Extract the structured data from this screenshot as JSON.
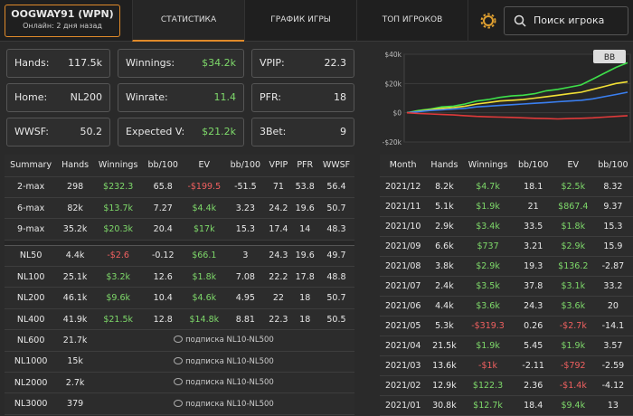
{
  "header": {
    "player": "OOGWAY91 (WPN)",
    "status": "Онлайн: 2 дня назад",
    "tabs": [
      "СТАТИСТИКА",
      "ГРАФИК ИГРЫ",
      "ТОП ИГРОКОВ"
    ],
    "search": "Поиск игрока"
  },
  "cards": [
    [
      "Hands:",
      "117.5k"
    ],
    [
      "Winnings:",
      "$34.2k"
    ],
    [
      "VPIP:",
      "22.3"
    ],
    [
      "Home:",
      "NL200"
    ],
    [
      "Winrate:",
      "11.4"
    ],
    [
      "PFR:",
      "18"
    ],
    [
      "WWSF:",
      "50.2"
    ],
    [
      "Expected V:",
      "$21.2k"
    ],
    [
      "3Bet:",
      "9"
    ]
  ],
  "chart": {
    "badge": "BB",
    "ylim": [
      -20000,
      40000
    ],
    "yticks": [
      {
        "value": 40000,
        "label": "$40k"
      },
      {
        "value": 20000,
        "label": "$20k"
      },
      {
        "value": 0,
        "label": "$0"
      },
      {
        "value": -20000,
        "label": "-$20k"
      }
    ],
    "series": [
      {
        "color": "#3ee04a",
        "values": [
          0,
          1500,
          2500,
          4000,
          4500,
          6000,
          8000,
          9000,
          10500,
          11500,
          12000,
          13000,
          15000,
          16000,
          17500,
          19000,
          23000,
          27000,
          31000,
          34200
        ]
      },
      {
        "color": "#f2e035",
        "values": [
          0,
          1000,
          2000,
          3000,
          3500,
          4500,
          6000,
          7000,
          8000,
          8500,
          9000,
          10000,
          11000,
          12000,
          13000,
          14000,
          16000,
          18000,
          20000,
          21200
        ]
      },
      {
        "color": "#3a7ff0",
        "values": [
          0,
          800,
          1500,
          2000,
          2500,
          3000,
          4000,
          4500,
          5000,
          5500,
          6000,
          6500,
          7000,
          7500,
          8000,
          8500,
          9500,
          11000,
          12500,
          14000
        ]
      },
      {
        "color": "#e03a3a",
        "values": [
          0,
          -500,
          -800,
          -1200,
          -1500,
          -2000,
          -2500,
          -2800,
          -3000,
          -3200,
          -3500,
          -3800,
          -4000,
          -4200,
          -4000,
          -3800,
          -3500,
          -3000,
          -2500,
          -2000
        ]
      }
    ]
  },
  "left_table": {
    "headers": [
      "Summary",
      "Hands",
      "Winnings",
      "bb/100",
      "EV",
      "bb/100",
      "VPIP",
      "PFR",
      "WWSF"
    ],
    "groups": [
      [
        [
          "2-max",
          "298",
          "$232.3",
          "65.8",
          "-$199.5",
          "-51.5",
          "71",
          "53.8",
          "56.4"
        ],
        [
          "6-max",
          "82k",
          "$13.7k",
          "7.27",
          "$4.4k",
          "3.23",
          "24.2",
          "19.6",
          "50.7"
        ],
        [
          "9-max",
          "35.2k",
          "$20.3k",
          "20.4",
          "$17k",
          "15.3",
          "17.4",
          "14",
          "48.3"
        ]
      ],
      [
        [
          "NL50",
          "4.4k",
          "-$2.6",
          "-0.12",
          "$66.1",
          "3",
          "24.3",
          "19.6",
          "49.7"
        ],
        [
          "NL100",
          "25.1k",
          "$3.2k",
          "12.6",
          "$1.8k",
          "7.08",
          "22.2",
          "17.8",
          "48.8"
        ],
        [
          "NL200",
          "46.1k",
          "$9.6k",
          "10.4",
          "$4.6k",
          "4.95",
          "22",
          "18",
          "50.7"
        ],
        [
          "NL400",
          "41.9k",
          "$21.5k",
          "12.8",
          "$14.8k",
          "8.81",
          "22.3",
          "18",
          "50.5"
        ],
        [
          "NL600",
          "21.7k",
          "подписка NL10-NL500"
        ],
        [
          "NL1000",
          "15k",
          "подписка NL10-NL500"
        ],
        [
          "NL2000",
          "2.7k",
          "подписка NL10-NL500"
        ],
        [
          "NL3000",
          "379",
          "подписка NL10-NL500"
        ]
      ]
    ]
  },
  "right_table": {
    "headers": [
      "Month",
      "Hands",
      "Winnings",
      "bb/100",
      "EV",
      "bb/100"
    ],
    "rows": [
      [
        "2021/12",
        "8.2k",
        "$4.7k",
        "18.1",
        "$2.5k",
        "8.32"
      ],
      [
        "2021/11",
        "5.1k",
        "$1.9k",
        "21",
        "$867.4",
        "9.37"
      ],
      [
        "2021/10",
        "2.9k",
        "$3.4k",
        "33.5",
        "$1.8k",
        "15.3"
      ],
      [
        "2021/09",
        "6.6k",
        "$737",
        "3.21",
        "$2.9k",
        "15.9"
      ],
      [
        "2021/08",
        "3.8k",
        "$2.9k",
        "19.3",
        "$136.2",
        "-2.87"
      ],
      [
        "2021/07",
        "2.4k",
        "$3.5k",
        "37.8",
        "$3.1k",
        "33.2"
      ],
      [
        "2021/06",
        "4.4k",
        "$3.6k",
        "24.3",
        "$3.6k",
        "20"
      ],
      [
        "2021/05",
        "5.3k",
        "-$319.3",
        "0.26",
        "-$2.7k",
        "-14.1"
      ],
      [
        "2021/04",
        "21.5k",
        "$1.9k",
        "5.45",
        "$1.9k",
        "3.57"
      ],
      [
        "2021/03",
        "13.6k",
        "-$1k",
        "-2.11",
        "-$792",
        "-2.59"
      ],
      [
        "2021/02",
        "12.9k",
        "$122.3",
        "2.36",
        "-$1.4k",
        "-4.12"
      ],
      [
        "2021/01",
        "30.8k",
        "$12.7k",
        "18.4",
        "$9.4k",
        "13"
      ]
    ]
  }
}
